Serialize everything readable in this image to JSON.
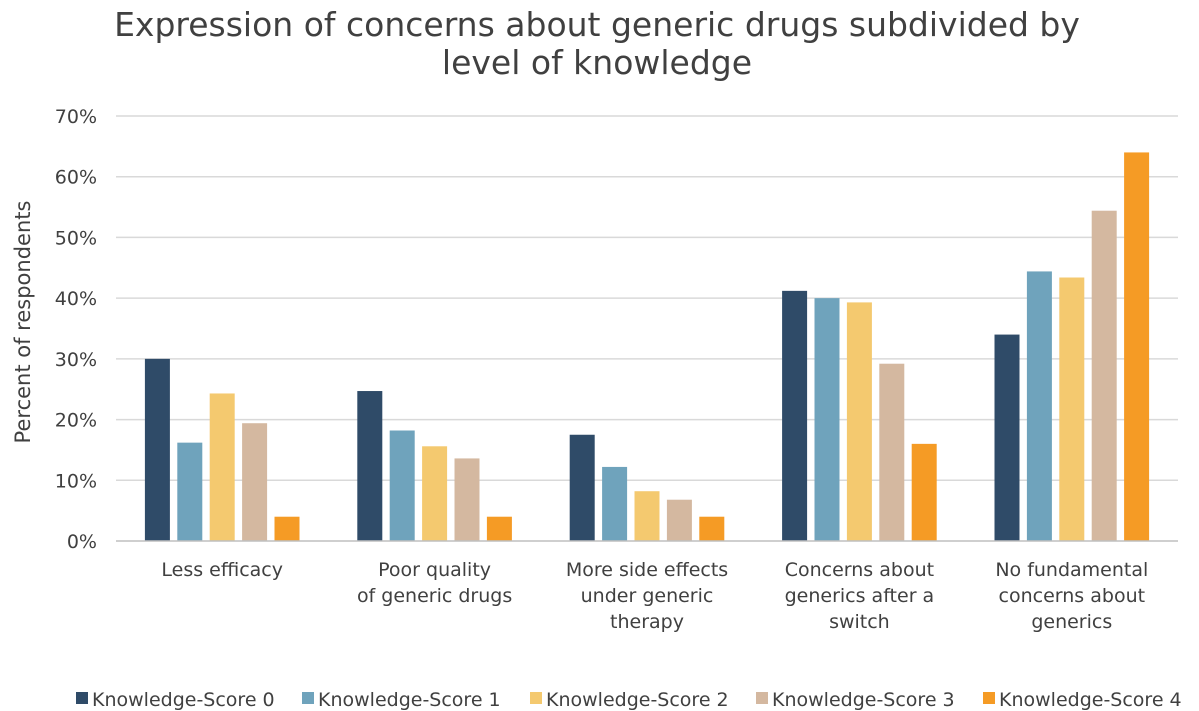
{
  "chart_data": {
    "type": "bar",
    "title": "Expression of concerns about generic drugs subdivided by level of knowledge",
    "title_lines": [
      "Expression of concerns about generic drugs subdivided by",
      "level of knowledge"
    ],
    "ylabel": "Percent of respondents",
    "xlabel": "",
    "ylim": [
      0,
      70
    ],
    "y_ticks": [
      "0%",
      "10%",
      "20%",
      "30%",
      "40%",
      "50%",
      "60%",
      "70%"
    ],
    "grid": true,
    "legend_position": "bottom",
    "categories": [
      [
        "Less efficacy"
      ],
      [
        "Poor quality",
        "of generic drugs"
      ],
      [
        "More side effects",
        "under generic",
        "therapy"
      ],
      [
        "Concerns about",
        "generics after a",
        "switch"
      ],
      [
        "No fundamental",
        "concerns about",
        "generics"
      ]
    ],
    "series": [
      {
        "name": "Knowledge-Score 0",
        "color": "#2f4b68",
        "values": [
          30,
          24.7,
          17.5,
          41.2,
          34
        ]
      },
      {
        "name": "Knowledge-Score 1",
        "color": "#6fa3bc",
        "values": [
          16.2,
          18.2,
          12.2,
          40,
          44.4
        ]
      },
      {
        "name": "Knowledge-Score 2",
        "color": "#f4c96f",
        "values": [
          24.3,
          15.6,
          8.2,
          39.3,
          43.4
        ]
      },
      {
        "name": "Knowledge-Score 3",
        "color": "#d4b8a0",
        "values": [
          19.4,
          13.6,
          6.8,
          29.2,
          54.4
        ]
      },
      {
        "name": "Knowledge-Score 4",
        "color": "#f59b25",
        "values": [
          4,
          4,
          4,
          16,
          64
        ]
      }
    ]
  }
}
